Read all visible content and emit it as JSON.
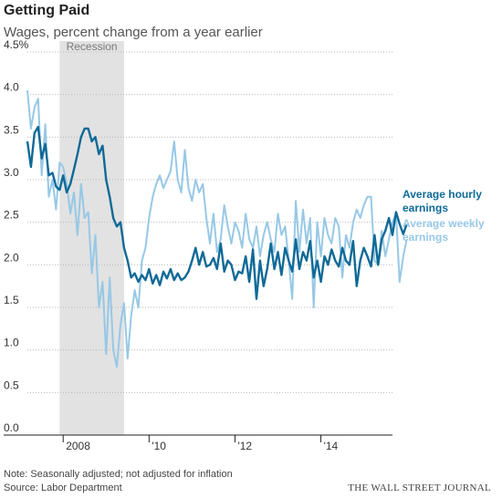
{
  "header": {
    "title": "Getting Paid",
    "subtitle": "Wages, percent change from a year earlier"
  },
  "footer": {
    "note": "Note: Seasonally adjusted; not adjusted for inflation",
    "source": "Source: Labor Department",
    "brand": "THE WALL STREET JOURNAL"
  },
  "colors": {
    "hourly": "#0f6a97",
    "weekly": "#97c8e6",
    "recession": "#e2e2e2",
    "grid": "#b9b9b9",
    "axis": "#222222"
  },
  "chart_data": {
    "type": "line",
    "title": "Getting Paid",
    "subtitle": "Wages, percent change from a year earlier",
    "ylim": [
      0,
      4.5
    ],
    "yticks": [
      0.0,
      0.5,
      1.0,
      1.5,
      2.0,
      2.5,
      3.0,
      3.5,
      4.0,
      4.5
    ],
    "ytick_labels": [
      "0.0",
      "0.5",
      "1.0",
      "1.5",
      "2.0",
      "2.5",
      "3.0",
      "3.5",
      "4.0",
      "4.5%"
    ],
    "xlim": [
      "2007-03",
      "2015-09"
    ],
    "xtick_labels": [
      {
        "label": "2008",
        "pos": "2008-01"
      },
      {
        "label": "'10",
        "pos": "2010-01"
      },
      {
        "label": "'12",
        "pos": "2012-01"
      },
      {
        "label": "'14",
        "pos": "2014-01"
      }
    ],
    "grid": "horizontal",
    "legend": "right",
    "shaded_region": {
      "label": "Recession",
      "start": "2007-12",
      "end": "2009-06"
    },
    "series": [
      {
        "name": "Average hourly earnings",
        "color": "#0f6a97",
        "start": "2007-03",
        "values": [
          3.45,
          3.15,
          3.55,
          3.62,
          3.25,
          3.42,
          3.05,
          3.08,
          2.92,
          2.88,
          3.05,
          2.85,
          2.95,
          3.12,
          3.3,
          3.5,
          3.6,
          3.6,
          3.45,
          3.5,
          3.3,
          3.4,
          3.0,
          2.8,
          2.55,
          2.45,
          2.5,
          2.2,
          2.05,
          1.85,
          1.9,
          1.8,
          1.88,
          1.82,
          1.95,
          1.78,
          1.88,
          1.76,
          1.92,
          1.84,
          1.95,
          1.82,
          1.9,
          1.82,
          1.85,
          1.92,
          2.05,
          2.2,
          2.0,
          2.15,
          1.98,
          2.0,
          2.08,
          1.95,
          2.25,
          1.92,
          2.05,
          2.0,
          1.82,
          1.92,
          1.9,
          2.1,
          1.8,
          2.18,
          1.6,
          2.05,
          1.75,
          1.95,
          2.25,
          1.95,
          2.15,
          1.88,
          2.2,
          2.05,
          1.92,
          2.3,
          1.95,
          2.15,
          2.05,
          2.28,
          1.85,
          2.05,
          1.8,
          2.1,
          2.0,
          2.18,
          2.05,
          1.98,
          2.2,
          2.05,
          2.0,
          2.28,
          1.75,
          2.05,
          2.2,
          2.1,
          1.98,
          2.35,
          2.0,
          2.3,
          2.4,
          2.55,
          2.35,
          2.62,
          2.48,
          2.36,
          2.48
        ]
      },
      {
        "name": "Average weekly earnings",
        "color": "#97c8e6",
        "start": "2007-03",
        "values": [
          4.05,
          3.6,
          3.85,
          3.95,
          3.05,
          3.65,
          2.8,
          3.0,
          2.65,
          3.2,
          3.15,
          2.95,
          2.6,
          2.85,
          2.35,
          2.95,
          2.55,
          2.62,
          1.9,
          2.35,
          1.5,
          1.8,
          0.95,
          1.85,
          1.0,
          0.8,
          1.3,
          1.55,
          0.9,
          1.4,
          1.7,
          1.5,
          2.05,
          2.2,
          2.55,
          2.8,
          2.95,
          3.05,
          2.9,
          3.0,
          3.1,
          3.45,
          3.0,
          2.85,
          3.35,
          2.9,
          2.75,
          3.0,
          2.85,
          2.95,
          2.55,
          2.25,
          2.6,
          2.15,
          2.3,
          2.7,
          2.45,
          2.25,
          2.5,
          2.4,
          2.2,
          2.6,
          2.3,
          2.2,
          2.45,
          2.1,
          2.35,
          2.5,
          2.3,
          2.15,
          2.6,
          2.35,
          2.45,
          2.05,
          1.6,
          2.75,
          2.15,
          2.65,
          2.25,
          2.55,
          1.5,
          2.5,
          2.1,
          2.55,
          2.35,
          2.25,
          2.55,
          2.45,
          1.85,
          2.35,
          2.2,
          2.5,
          2.65,
          2.55,
          2.7,
          2.8,
          2.8,
          2.05,
          2.0,
          2.4,
          2.1,
          2.3,
          2.5,
          2.6,
          1.8,
          2.1,
          2.3
        ]
      }
    ]
  },
  "legend": {
    "hourly_label": "Average hourly earnings",
    "weekly_label": "Average weekly earnings"
  }
}
